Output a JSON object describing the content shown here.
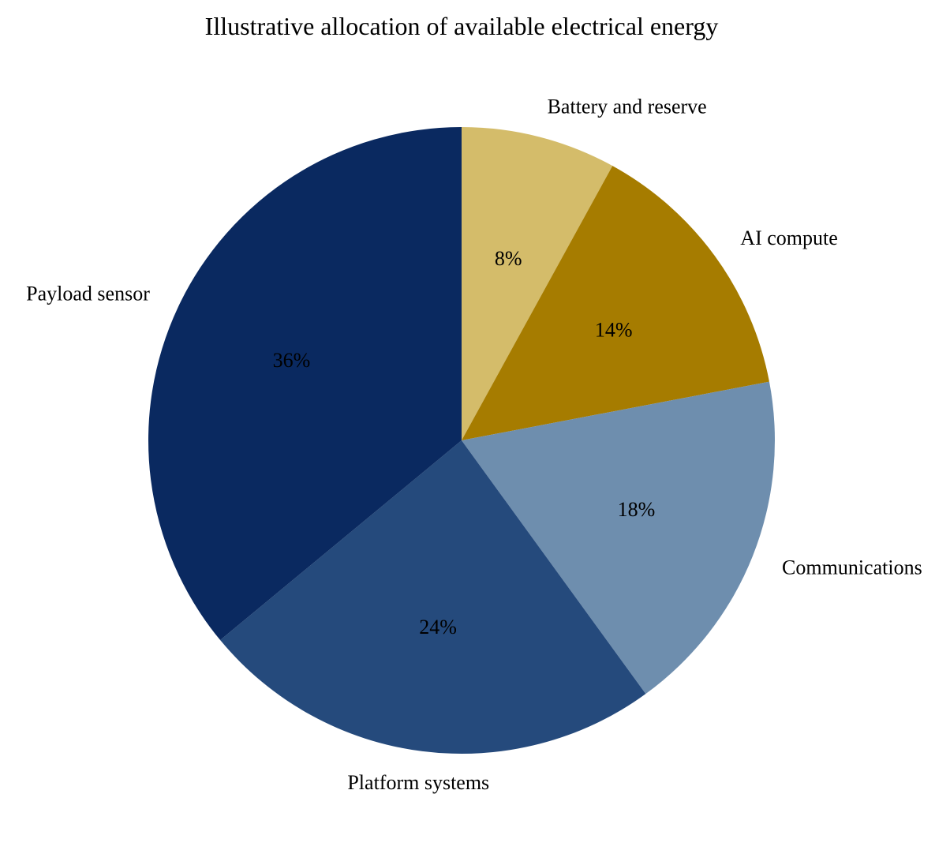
{
  "chart_data": {
    "type": "pie",
    "title": "Illustrative allocation of available electrical energy",
    "start": "top",
    "direction": "clockwise",
    "slices": [
      {
        "label": "Battery and reserve",
        "value": 8,
        "pct_label": "8%",
        "color": "#D4BC6A"
      },
      {
        "label": "AI compute",
        "value": 14,
        "pct_label": "14%",
        "color": "#A67C00"
      },
      {
        "label": "Communications",
        "value": 18,
        "pct_label": "18%",
        "color": "#6E8EAE"
      },
      {
        "label": "Platform systems",
        "value": 24,
        "pct_label": "24%",
        "color": "#254A7C"
      },
      {
        "label": "Payload sensor",
        "value": 36,
        "pct_label": "36%",
        "color": "#0A2960"
      }
    ]
  }
}
